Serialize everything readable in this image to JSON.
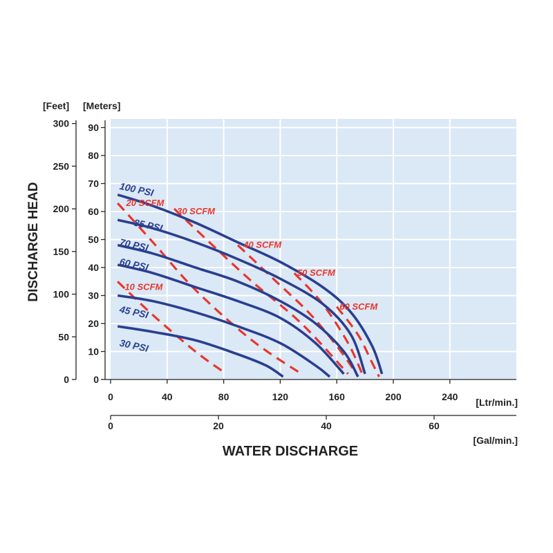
{
  "chart_data": {
    "type": "line",
    "title": "",
    "xlabel": "WATER DISCHARGE",
    "ylabel": "DISCHARGE HEAD",
    "x_units_primary": "[Ltr/min.]",
    "x_units_secondary": "[Gal/min.]",
    "y_units_left": "[Feet]",
    "y_units_right": "[Meters]",
    "xlim": [
      0,
      295
    ],
    "ylim": [
      0,
      93
    ],
    "x_ticks": [
      0,
      40,
      80,
      120,
      160,
      200,
      240
    ],
    "x_ticks_secondary": [
      0,
      20,
      40,
      60
    ],
    "y_ticks_meters": [
      0,
      10,
      20,
      30,
      40,
      50,
      60,
      70,
      80,
      90
    ],
    "y_ticks_feet": [
      0,
      50,
      100,
      150,
      200,
      250,
      300
    ],
    "grid": true,
    "colors": {
      "pressure": "#2a3f8f",
      "air": "#e8372c",
      "plot_bg": "#dbe8f6",
      "grid": "#ffffff"
    },
    "series": [
      {
        "name": "100 PSI",
        "kind": "pressure",
        "label_at": [
          6,
          68
        ],
        "points": [
          [
            5,
            66
          ],
          [
            30,
            62
          ],
          [
            60,
            56
          ],
          [
            90,
            49
          ],
          [
            120,
            42
          ],
          [
            150,
            33
          ],
          [
            170,
            24
          ],
          [
            185,
            12
          ],
          [
            192,
            2
          ]
        ]
      },
      {
        "name": "85 PSI",
        "kind": "pressure",
        "label_at": [
          16,
          55
        ],
        "points": [
          [
            5,
            57
          ],
          [
            30,
            54
          ],
          [
            60,
            49
          ],
          [
            90,
            43
          ],
          [
            120,
            36
          ],
          [
            150,
            27
          ],
          [
            170,
            16
          ],
          [
            180,
            2
          ]
        ]
      },
      {
        "name": "70 PSI",
        "kind": "pressure",
        "label_at": [
          6,
          48
        ],
        "points": [
          [
            5,
            48
          ],
          [
            30,
            45
          ],
          [
            60,
            40
          ],
          [
            90,
            35
          ],
          [
            120,
            28
          ],
          [
            145,
            20
          ],
          [
            165,
            10
          ],
          [
            175,
            1
          ]
        ]
      },
      {
        "name": "60 PSI",
        "kind": "pressure",
        "label_at": [
          6,
          41
        ],
        "points": [
          [
            5,
            41
          ],
          [
            30,
            38
          ],
          [
            60,
            33
          ],
          [
            90,
            28
          ],
          [
            120,
            22
          ],
          [
            145,
            13
          ],
          [
            165,
            2
          ]
        ]
      },
      {
        "name": "45 PSI",
        "kind": "pressure",
        "label_at": [
          6,
          24
        ],
        "points": [
          [
            5,
            30
          ],
          [
            30,
            28
          ],
          [
            60,
            24
          ],
          [
            90,
            19
          ],
          [
            120,
            13
          ],
          [
            145,
            5
          ],
          [
            155,
            1
          ]
        ]
      },
      {
        "name": "30 PSI",
        "kind": "pressure",
        "label_at": [
          6,
          12
        ],
        "points": [
          [
            5,
            19
          ],
          [
            30,
            17
          ],
          [
            60,
            14
          ],
          [
            90,
            9
          ],
          [
            110,
            5
          ],
          [
            122,
            1
          ]
        ]
      },
      {
        "name": "10 SCFM",
        "kind": "air",
        "label_at": [
          10,
          32
        ],
        "points": [
          [
            5,
            35
          ],
          [
            30,
            23
          ],
          [
            60,
            10
          ],
          [
            82,
            2
          ]
        ]
      },
      {
        "name": "20 SCFM",
        "kind": "air",
        "label_at": [
          11,
          62
        ],
        "points": [
          [
            5,
            63
          ],
          [
            30,
            49
          ],
          [
            60,
            32
          ],
          [
            100,
            14
          ],
          [
            135,
            2
          ]
        ]
      },
      {
        "name": "30 SCFM",
        "kind": "air",
        "label_at": [
          47,
          59
        ],
        "points": [
          [
            45,
            61
          ],
          [
            70,
            49
          ],
          [
            100,
            35
          ],
          [
            135,
            20
          ],
          [
            168,
            2
          ]
        ]
      },
      {
        "name": "40 SCFM",
        "kind": "air",
        "label_at": [
          94,
          47
        ],
        "points": [
          [
            90,
            48
          ],
          [
            115,
            36
          ],
          [
            140,
            24
          ],
          [
            160,
            12
          ],
          [
            174,
            2
          ]
        ]
      },
      {
        "name": "50 SCFM",
        "kind": "air",
        "label_at": [
          132,
          37
        ],
        "points": [
          [
            130,
            38
          ],
          [
            150,
            27
          ],
          [
            168,
            13
          ],
          [
            178,
            2
          ]
        ]
      },
      {
        "name": "60 SCFM",
        "kind": "air",
        "label_at": [
          162,
          25
        ],
        "points": [
          [
            160,
            26
          ],
          [
            175,
            16
          ],
          [
            185,
            6
          ],
          [
            190,
            1
          ]
        ]
      }
    ]
  }
}
